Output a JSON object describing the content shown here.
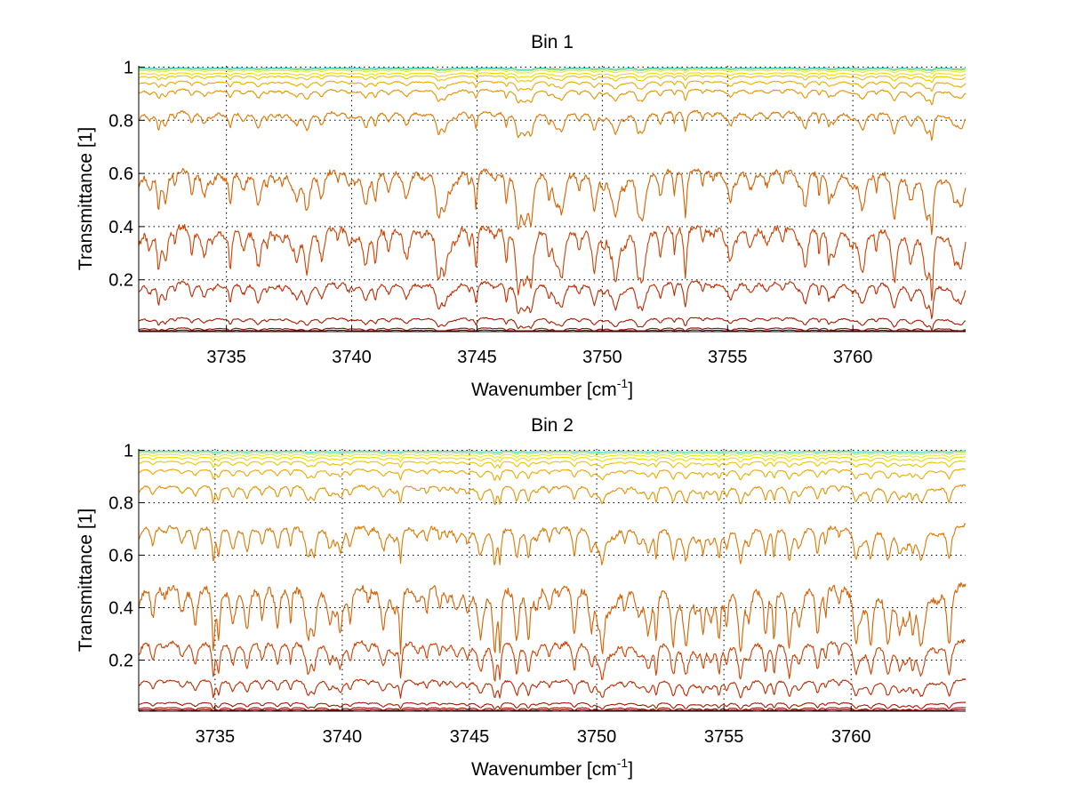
{
  "chart_data": [
    {
      "type": "line",
      "title": "Bin 1",
      "xlabel": "Wavenumber [cm",
      "xlabel_sup": "-1",
      "xlabel_suffix": "]",
      "ylabel": "Transmittance [1]",
      "xlim": [
        3731.5,
        3764.5
      ],
      "ylim": [
        0.005,
        1.005
      ],
      "x_ticks": [
        3735,
        3740,
        3745,
        3750,
        3755,
        3760
      ],
      "y_ticks": [
        0.2,
        0.4,
        0.6,
        0.8,
        1
      ],
      "y_tick_labels": [
        "0.2",
        "0.4",
        "0.6",
        "0.8",
        "1"
      ],
      "grid": true,
      "series_baselines": [
        0.012,
        0.02,
        0.06,
        0.2,
        0.42,
        0.63,
        0.84,
        0.92,
        0.95,
        0.97,
        0.98,
        0.99,
        0.995,
        0.998
      ],
      "series_colors": [
        "#7a0000",
        "#8e0c00",
        "#a81a00",
        "#c02a00",
        "#d04000",
        "#d86000",
        "#e07800",
        "#e89200",
        "#eeaa00",
        "#f0c400",
        "#f2dc00",
        "#e4ec20",
        "#9ee070",
        "#40d0c0"
      ]
    },
    {
      "type": "line",
      "title": "Bin 2",
      "xlabel": "Wavenumber [cm",
      "xlabel_sup": "-1",
      "xlabel_suffix": "]",
      "ylabel": "Transmittance [1]",
      "xlim": [
        3732.0,
        3764.5
      ],
      "ylim": [
        0.005,
        1.005
      ],
      "x_ticks": [
        3735,
        3740,
        3745,
        3750,
        3755,
        3760
      ],
      "y_ticks": [
        0.2,
        0.4,
        0.6,
        0.8,
        1
      ],
      "y_tick_labels": [
        "0.2",
        "0.4",
        "0.6",
        "0.8",
        "1"
      ],
      "grid": true,
      "series_baselines": [
        0.012,
        0.02,
        0.04,
        0.13,
        0.28,
        0.5,
        0.72,
        0.87,
        0.93,
        0.96,
        0.975,
        0.985,
        0.993,
        0.998
      ],
      "series_colors": [
        "#7a0000",
        "#8e0c00",
        "#a81a00",
        "#c02a00",
        "#d04000",
        "#d86000",
        "#e07800",
        "#e89200",
        "#eeaa00",
        "#f0c400",
        "#f2dc00",
        "#e4ec20",
        "#9ee070",
        "#40d0c0"
      ]
    }
  ]
}
